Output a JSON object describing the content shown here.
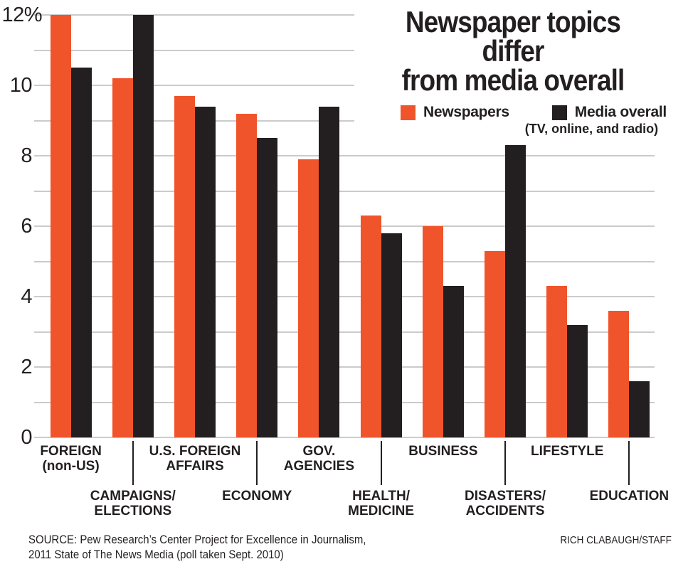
{
  "title": {
    "line1": "Newspaper topics differ",
    "line2": "from media overall"
  },
  "legend": {
    "items": [
      {
        "label": "Newspapers",
        "color": "#F0542B"
      },
      {
        "label": "Media overall",
        "sublabel": "(TV, online, and radio)",
        "color": "#231F20"
      }
    ]
  },
  "y_axis": {
    "ticks": [
      {
        "value": 12,
        "label": "12%"
      },
      {
        "value": 10,
        "label": "10"
      },
      {
        "value": 8,
        "label": "8"
      },
      {
        "value": 6,
        "label": "6"
      },
      {
        "value": 4,
        "label": "4"
      },
      {
        "value": 2,
        "label": "2"
      },
      {
        "value": 0,
        "label": "0"
      }
    ]
  },
  "chart_data": {
    "type": "bar",
    "title": "Newspaper topics differ from media overall",
    "unit": "percent",
    "ylim": [
      0,
      12
    ],
    "gridline_step": 1,
    "grid": true,
    "legend_position": "top-right",
    "categories": [
      {
        "lines": [
          "FOREIGN",
          "(non-US)"
        ],
        "row": "top"
      },
      {
        "lines": [
          "CAMPAIGNS/",
          "ELECTIONS"
        ],
        "row": "bottom"
      },
      {
        "lines": [
          "U.S. FOREIGN",
          "AFFAIRS"
        ],
        "row": "top"
      },
      {
        "lines": [
          "ECONOMY"
        ],
        "row": "bottom"
      },
      {
        "lines": [
          "GOV.",
          "AGENCIES"
        ],
        "row": "top"
      },
      {
        "lines": [
          "HEALTH/",
          "MEDICINE"
        ],
        "row": "bottom"
      },
      {
        "lines": [
          "BUSINESS"
        ],
        "row": "top"
      },
      {
        "lines": [
          "DISASTERS/",
          "ACCIDENTS"
        ],
        "row": "bottom"
      },
      {
        "lines": [
          "LIFESTYLE"
        ],
        "row": "top"
      },
      {
        "lines": [
          "EDUCATION"
        ],
        "row": "bottom"
      }
    ],
    "series": [
      {
        "name": "Newspapers",
        "color": "#F0542B",
        "values": [
          12.0,
          10.2,
          9.7,
          9.2,
          7.9,
          6.3,
          6.0,
          5.3,
          4.3,
          3.6
        ]
      },
      {
        "name": "Media overall",
        "color": "#231F20",
        "values": [
          10.5,
          12.0,
          9.4,
          8.5,
          9.4,
          5.8,
          4.3,
          8.3,
          3.2,
          1.6
        ]
      }
    ]
  },
  "colors": {
    "newspapers": "#F0542B",
    "media_overall": "#231F20",
    "gridline": "#CBCBCB",
    "text": "#231F20",
    "background": "#FFFFFF"
  },
  "footer": {
    "source_line1": "SOURCE: Pew Research’s Center Project for Excellence in Journalism,",
    "source_line2": "2011 State of The News Media (poll taken Sept. 2010)",
    "credit": "RICH CLABAUGH/STAFF"
  }
}
